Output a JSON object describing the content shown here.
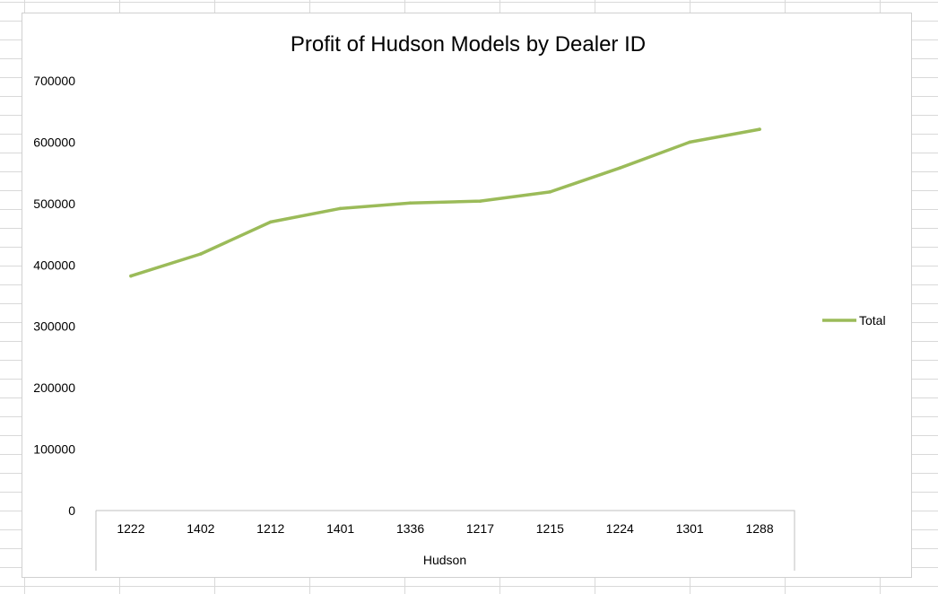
{
  "chart_data": {
    "type": "line",
    "title": "Profit of Hudson Models by Dealer ID",
    "xlabel": "Hudson",
    "ylabel": "",
    "categories": [
      "1222",
      "1402",
      "1212",
      "1401",
      "1336",
      "1217",
      "1215",
      "1224",
      "1301",
      "1288"
    ],
    "series": [
      {
        "name": "Total",
        "values": [
          382000,
          418000,
          470000,
          492000,
          501000,
          504000,
          519000,
          558000,
          600000,
          621000
        ],
        "color": "#9bbb59"
      }
    ],
    "yticks": [
      "0",
      "100000",
      "200000",
      "300000",
      "400000",
      "500000",
      "600000",
      "700000"
    ],
    "ylim": [
      0,
      700000
    ],
    "grid": false,
    "legend_position": "right"
  }
}
